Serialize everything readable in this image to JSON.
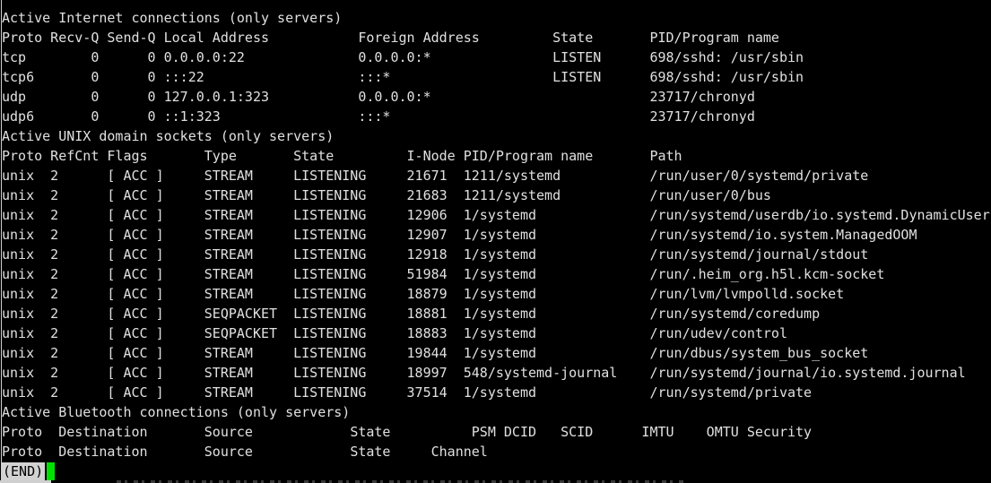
{
  "colors": {
    "background": "#000000",
    "foreground": "#e0e0e0",
    "cursor": "#00e000",
    "status_bg": "#d2d2d2",
    "status_fg": "#000000",
    "border": "#cfcfcf"
  },
  "status": {
    "label": "(END)"
  },
  "sections": [
    {
      "name": "internet",
      "title": "Active Internet connections (only servers)",
      "headers": [
        [
          {
            "c": 0,
            "t": "Proto"
          },
          {
            "c": 6,
            "t": "Recv-Q"
          },
          {
            "c": 13,
            "t": "Send-Q"
          },
          {
            "c": 20,
            "t": "Local Address"
          },
          {
            "c": 44,
            "t": "Foreign Address"
          },
          {
            "c": 68,
            "t": "State"
          },
          {
            "c": 80,
            "t": "PID/Program name"
          }
        ]
      ],
      "rows": [
        [
          {
            "c": 0,
            "t": "tcp"
          },
          {
            "c": 11,
            "t": "0"
          },
          {
            "c": 18,
            "t": "0"
          },
          {
            "c": 20,
            "t": "0.0.0.0:22"
          },
          {
            "c": 44,
            "t": "0.0.0.0:*"
          },
          {
            "c": 68,
            "t": "LISTEN"
          },
          {
            "c": 80,
            "t": "698/sshd: /usr/sbin"
          }
        ],
        [
          {
            "c": 0,
            "t": "tcp6"
          },
          {
            "c": 11,
            "t": "0"
          },
          {
            "c": 18,
            "t": "0"
          },
          {
            "c": 20,
            "t": ":::22"
          },
          {
            "c": 44,
            "t": ":::*"
          },
          {
            "c": 68,
            "t": "LISTEN"
          },
          {
            "c": 80,
            "t": "698/sshd: /usr/sbin"
          }
        ],
        [
          {
            "c": 0,
            "t": "udp"
          },
          {
            "c": 11,
            "t": "0"
          },
          {
            "c": 18,
            "t": "0"
          },
          {
            "c": 20,
            "t": "127.0.0.1:323"
          },
          {
            "c": 44,
            "t": "0.0.0.0:*"
          },
          {
            "c": 80,
            "t": "23717/chronyd"
          }
        ],
        [
          {
            "c": 0,
            "t": "udp6"
          },
          {
            "c": 11,
            "t": "0"
          },
          {
            "c": 18,
            "t": "0"
          },
          {
            "c": 20,
            "t": "::1:323"
          },
          {
            "c": 44,
            "t": ":::*"
          },
          {
            "c": 80,
            "t": "23717/chronyd"
          }
        ]
      ]
    },
    {
      "name": "unix",
      "title": "Active UNIX domain sockets (only servers)",
      "headers": [
        [
          {
            "c": 0,
            "t": "Proto"
          },
          {
            "c": 6,
            "t": "RefCnt"
          },
          {
            "c": 13,
            "t": "Flags"
          },
          {
            "c": 25,
            "t": "Type"
          },
          {
            "c": 36,
            "t": "State"
          },
          {
            "c": 50,
            "t": "I-Node"
          },
          {
            "c": 57,
            "t": "PID/Program name"
          },
          {
            "c": 80,
            "t": "Path"
          }
        ]
      ],
      "rows": [
        [
          {
            "c": 0,
            "t": "unix"
          },
          {
            "c": 6,
            "t": "2"
          },
          {
            "c": 13,
            "t": "[ ACC ]"
          },
          {
            "c": 25,
            "t": "STREAM"
          },
          {
            "c": 36,
            "t": "LISTENING"
          },
          {
            "c": 50,
            "t": "21671"
          },
          {
            "c": 57,
            "t": "1211/systemd"
          },
          {
            "c": 80,
            "t": "/run/user/0/systemd/private"
          }
        ],
        [
          {
            "c": 0,
            "t": "unix"
          },
          {
            "c": 6,
            "t": "2"
          },
          {
            "c": 13,
            "t": "[ ACC ]"
          },
          {
            "c": 25,
            "t": "STREAM"
          },
          {
            "c": 36,
            "t": "LISTENING"
          },
          {
            "c": 50,
            "t": "21683"
          },
          {
            "c": 57,
            "t": "1211/systemd"
          },
          {
            "c": 80,
            "t": "/run/user/0/bus"
          }
        ],
        [
          {
            "c": 0,
            "t": "unix"
          },
          {
            "c": 6,
            "t": "2"
          },
          {
            "c": 13,
            "t": "[ ACC ]"
          },
          {
            "c": 25,
            "t": "STREAM"
          },
          {
            "c": 36,
            "t": "LISTENING"
          },
          {
            "c": 50,
            "t": "12906"
          },
          {
            "c": 57,
            "t": "1/systemd"
          },
          {
            "c": 80,
            "t": "/run/systemd/userdb/io.systemd.DynamicUser"
          }
        ],
        [
          {
            "c": 0,
            "t": "unix"
          },
          {
            "c": 6,
            "t": "2"
          },
          {
            "c": 13,
            "t": "[ ACC ]"
          },
          {
            "c": 25,
            "t": "STREAM"
          },
          {
            "c": 36,
            "t": "LISTENING"
          },
          {
            "c": 50,
            "t": "12907"
          },
          {
            "c": 57,
            "t": "1/systemd"
          },
          {
            "c": 80,
            "t": "/run/systemd/io.system.ManagedOOM"
          }
        ],
        [
          {
            "c": 0,
            "t": "unix"
          },
          {
            "c": 6,
            "t": "2"
          },
          {
            "c": 13,
            "t": "[ ACC ]"
          },
          {
            "c": 25,
            "t": "STREAM"
          },
          {
            "c": 36,
            "t": "LISTENING"
          },
          {
            "c": 50,
            "t": "12918"
          },
          {
            "c": 57,
            "t": "1/systemd"
          },
          {
            "c": 80,
            "t": "/run/systemd/journal/stdout"
          }
        ],
        [
          {
            "c": 0,
            "t": "unix"
          },
          {
            "c": 6,
            "t": "2"
          },
          {
            "c": 13,
            "t": "[ ACC ]"
          },
          {
            "c": 25,
            "t": "STREAM"
          },
          {
            "c": 36,
            "t": "LISTENING"
          },
          {
            "c": 50,
            "t": "51984"
          },
          {
            "c": 57,
            "t": "1/systemd"
          },
          {
            "c": 80,
            "t": "/run/.heim_org.h5l.kcm-socket"
          }
        ],
        [
          {
            "c": 0,
            "t": "unix"
          },
          {
            "c": 6,
            "t": "2"
          },
          {
            "c": 13,
            "t": "[ ACC ]"
          },
          {
            "c": 25,
            "t": "STREAM"
          },
          {
            "c": 36,
            "t": "LISTENING"
          },
          {
            "c": 50,
            "t": "18879"
          },
          {
            "c": 57,
            "t": "1/systemd"
          },
          {
            "c": 80,
            "t": "/run/lvm/lvmpolld.socket"
          }
        ],
        [
          {
            "c": 0,
            "t": "unix"
          },
          {
            "c": 6,
            "t": "2"
          },
          {
            "c": 13,
            "t": "[ ACC ]"
          },
          {
            "c": 25,
            "t": "SEQPACKET"
          },
          {
            "c": 36,
            "t": "LISTENING"
          },
          {
            "c": 50,
            "t": "18881"
          },
          {
            "c": 57,
            "t": "1/systemd"
          },
          {
            "c": 80,
            "t": "/run/systemd/coredump"
          }
        ],
        [
          {
            "c": 0,
            "t": "unix"
          },
          {
            "c": 6,
            "t": "2"
          },
          {
            "c": 13,
            "t": "[ ACC ]"
          },
          {
            "c": 25,
            "t": "SEQPACKET"
          },
          {
            "c": 36,
            "t": "LISTENING"
          },
          {
            "c": 50,
            "t": "18883"
          },
          {
            "c": 57,
            "t": "1/systemd"
          },
          {
            "c": 80,
            "t": "/run/udev/control"
          }
        ],
        [
          {
            "c": 0,
            "t": "unix"
          },
          {
            "c": 6,
            "t": "2"
          },
          {
            "c": 13,
            "t": "[ ACC ]"
          },
          {
            "c": 25,
            "t": "STREAM"
          },
          {
            "c": 36,
            "t": "LISTENING"
          },
          {
            "c": 50,
            "t": "19844"
          },
          {
            "c": 57,
            "t": "1/systemd"
          },
          {
            "c": 80,
            "t": "/run/dbus/system_bus_socket"
          }
        ],
        [
          {
            "c": 0,
            "t": "unix"
          },
          {
            "c": 6,
            "t": "2"
          },
          {
            "c": 13,
            "t": "[ ACC ]"
          },
          {
            "c": 25,
            "t": "STREAM"
          },
          {
            "c": 36,
            "t": "LISTENING"
          },
          {
            "c": 50,
            "t": "18997"
          },
          {
            "c": 57,
            "t": "548/systemd-journal"
          },
          {
            "c": 80,
            "t": "/run/systemd/journal/io.systemd.journal"
          }
        ],
        [
          {
            "c": 0,
            "t": "unix"
          },
          {
            "c": 6,
            "t": "2"
          },
          {
            "c": 13,
            "t": "[ ACC ]"
          },
          {
            "c": 25,
            "t": "STREAM"
          },
          {
            "c": 36,
            "t": "LISTENING"
          },
          {
            "c": 50,
            "t": "37514"
          },
          {
            "c": 57,
            "t": "1/systemd"
          },
          {
            "c": 80,
            "t": "/run/systemd/private"
          }
        ]
      ]
    },
    {
      "name": "bluetooth",
      "title": "Active Bluetooth connections (only servers)",
      "headers": [
        [
          {
            "c": 0,
            "t": "Proto"
          },
          {
            "c": 7,
            "t": "Destination"
          },
          {
            "c": 25,
            "t": "Source"
          },
          {
            "c": 43,
            "t": "State"
          },
          {
            "c": 58,
            "t": "PSM"
          },
          {
            "c": 62,
            "t": "DCID"
          },
          {
            "c": 69,
            "t": "SCID"
          },
          {
            "c": 79,
            "t": "IMTU"
          },
          {
            "c": 87,
            "t": "OMTU"
          },
          {
            "c": 92,
            "t": "Security"
          }
        ],
        [
          {
            "c": 0,
            "t": "Proto"
          },
          {
            "c": 7,
            "t": "Destination"
          },
          {
            "c": 25,
            "t": "Source"
          },
          {
            "c": 43,
            "t": "State"
          },
          {
            "c": 53,
            "t": "Channel"
          }
        ]
      ],
      "rows": []
    }
  ]
}
